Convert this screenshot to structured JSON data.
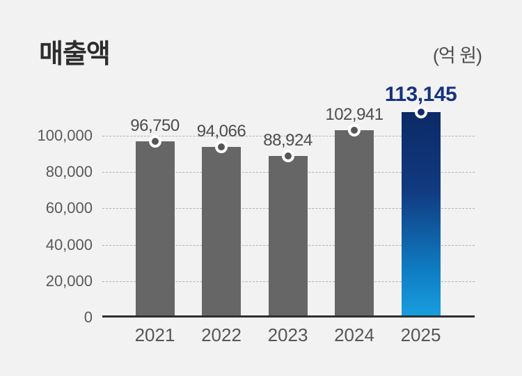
{
  "header": {
    "title": "매출액",
    "unit_label": "(억 원)"
  },
  "chart_data": {
    "type": "bar",
    "title": "매출액",
    "unit": "억 원",
    "xlabel": "",
    "ylabel": "",
    "categories": [
      "2021",
      "2022",
      "2023",
      "2024",
      "2025"
    ],
    "values": [
      96750,
      94066,
      88924,
      102941,
      113145
    ],
    "value_labels": [
      "96,750",
      "94,066",
      "88,924",
      "102,941",
      "113,145"
    ],
    "ylim": [
      0,
      120000
    ],
    "ytick_interval": 20000,
    "ytick_values": [
      0,
      20000,
      40000,
      60000,
      80000,
      100000
    ],
    "ytick_labels": [
      "0",
      "20,000",
      "40,000",
      "60,000",
      "80,000",
      "100,000"
    ],
    "grid": "horizontal-dotted",
    "legend": "none",
    "highlight_index": 4,
    "colors": {
      "background": "#f2f2f3",
      "bar_default": "#666667",
      "bar_highlight_top": "#0c2a66",
      "bar_highlight_bottom": "#189fe0",
      "value_label_default": "#4c4c4c",
      "value_label_highlight": "#16337f",
      "marker_ring": "#ffffff",
      "marker_dot_default": "#565656",
      "marker_dot_highlight": "#0f2d6b",
      "axis_line": "#2f2f2f",
      "gridline": "#b2b2b2"
    }
  }
}
